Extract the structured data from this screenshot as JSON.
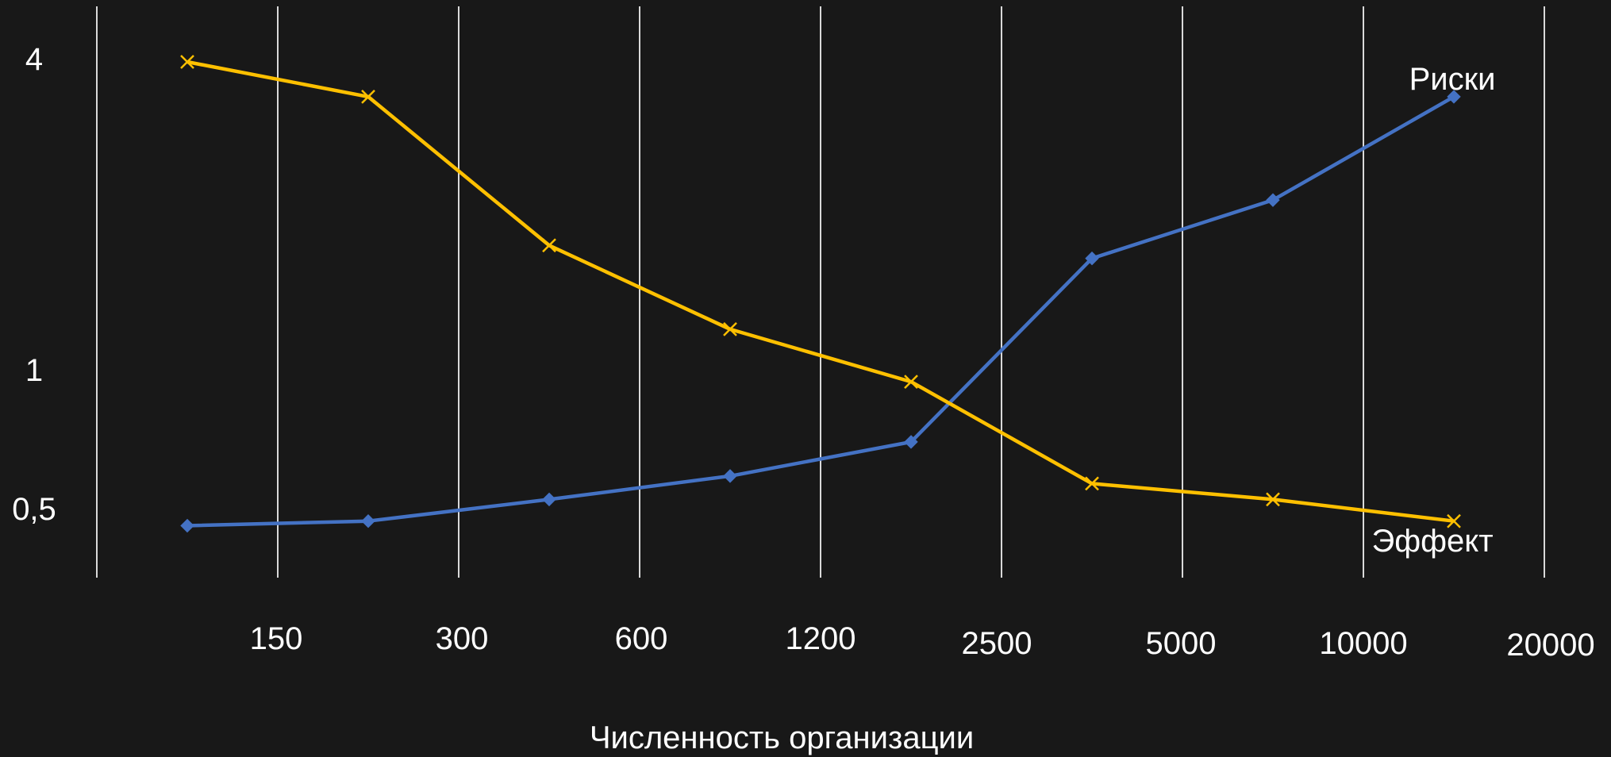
{
  "chart_data": {
    "type": "line",
    "title": "",
    "xlabel": "Численность организации",
    "ylabel": "",
    "y_scale": "log",
    "grid": "vertical",
    "x_ticks": [
      "150",
      "300",
      "600",
      "1200",
      "2500",
      "5000",
      "10000",
      "20000"
    ],
    "y_ticks": [
      {
        "label": "4",
        "value": 4
      },
      {
        "label": "1",
        "value": 1
      },
      {
        "label": "0,5",
        "value": 0.5
      }
    ],
    "y_range": [
      0.45,
      5.0
    ],
    "series": [
      {
        "name": "Риски",
        "color": "#4472C4",
        "marker": "diamond",
        "values": [
          0.46,
          0.47,
          0.52,
          0.58,
          0.68,
          1.6,
          2.1,
          3.4
        ]
      },
      {
        "name": "Эффект",
        "color": "#FFC000",
        "marker": "x",
        "values": [
          4.0,
          3.4,
          1.7,
          1.15,
          0.9,
          0.56,
          0.52,
          0.47
        ]
      }
    ]
  }
}
